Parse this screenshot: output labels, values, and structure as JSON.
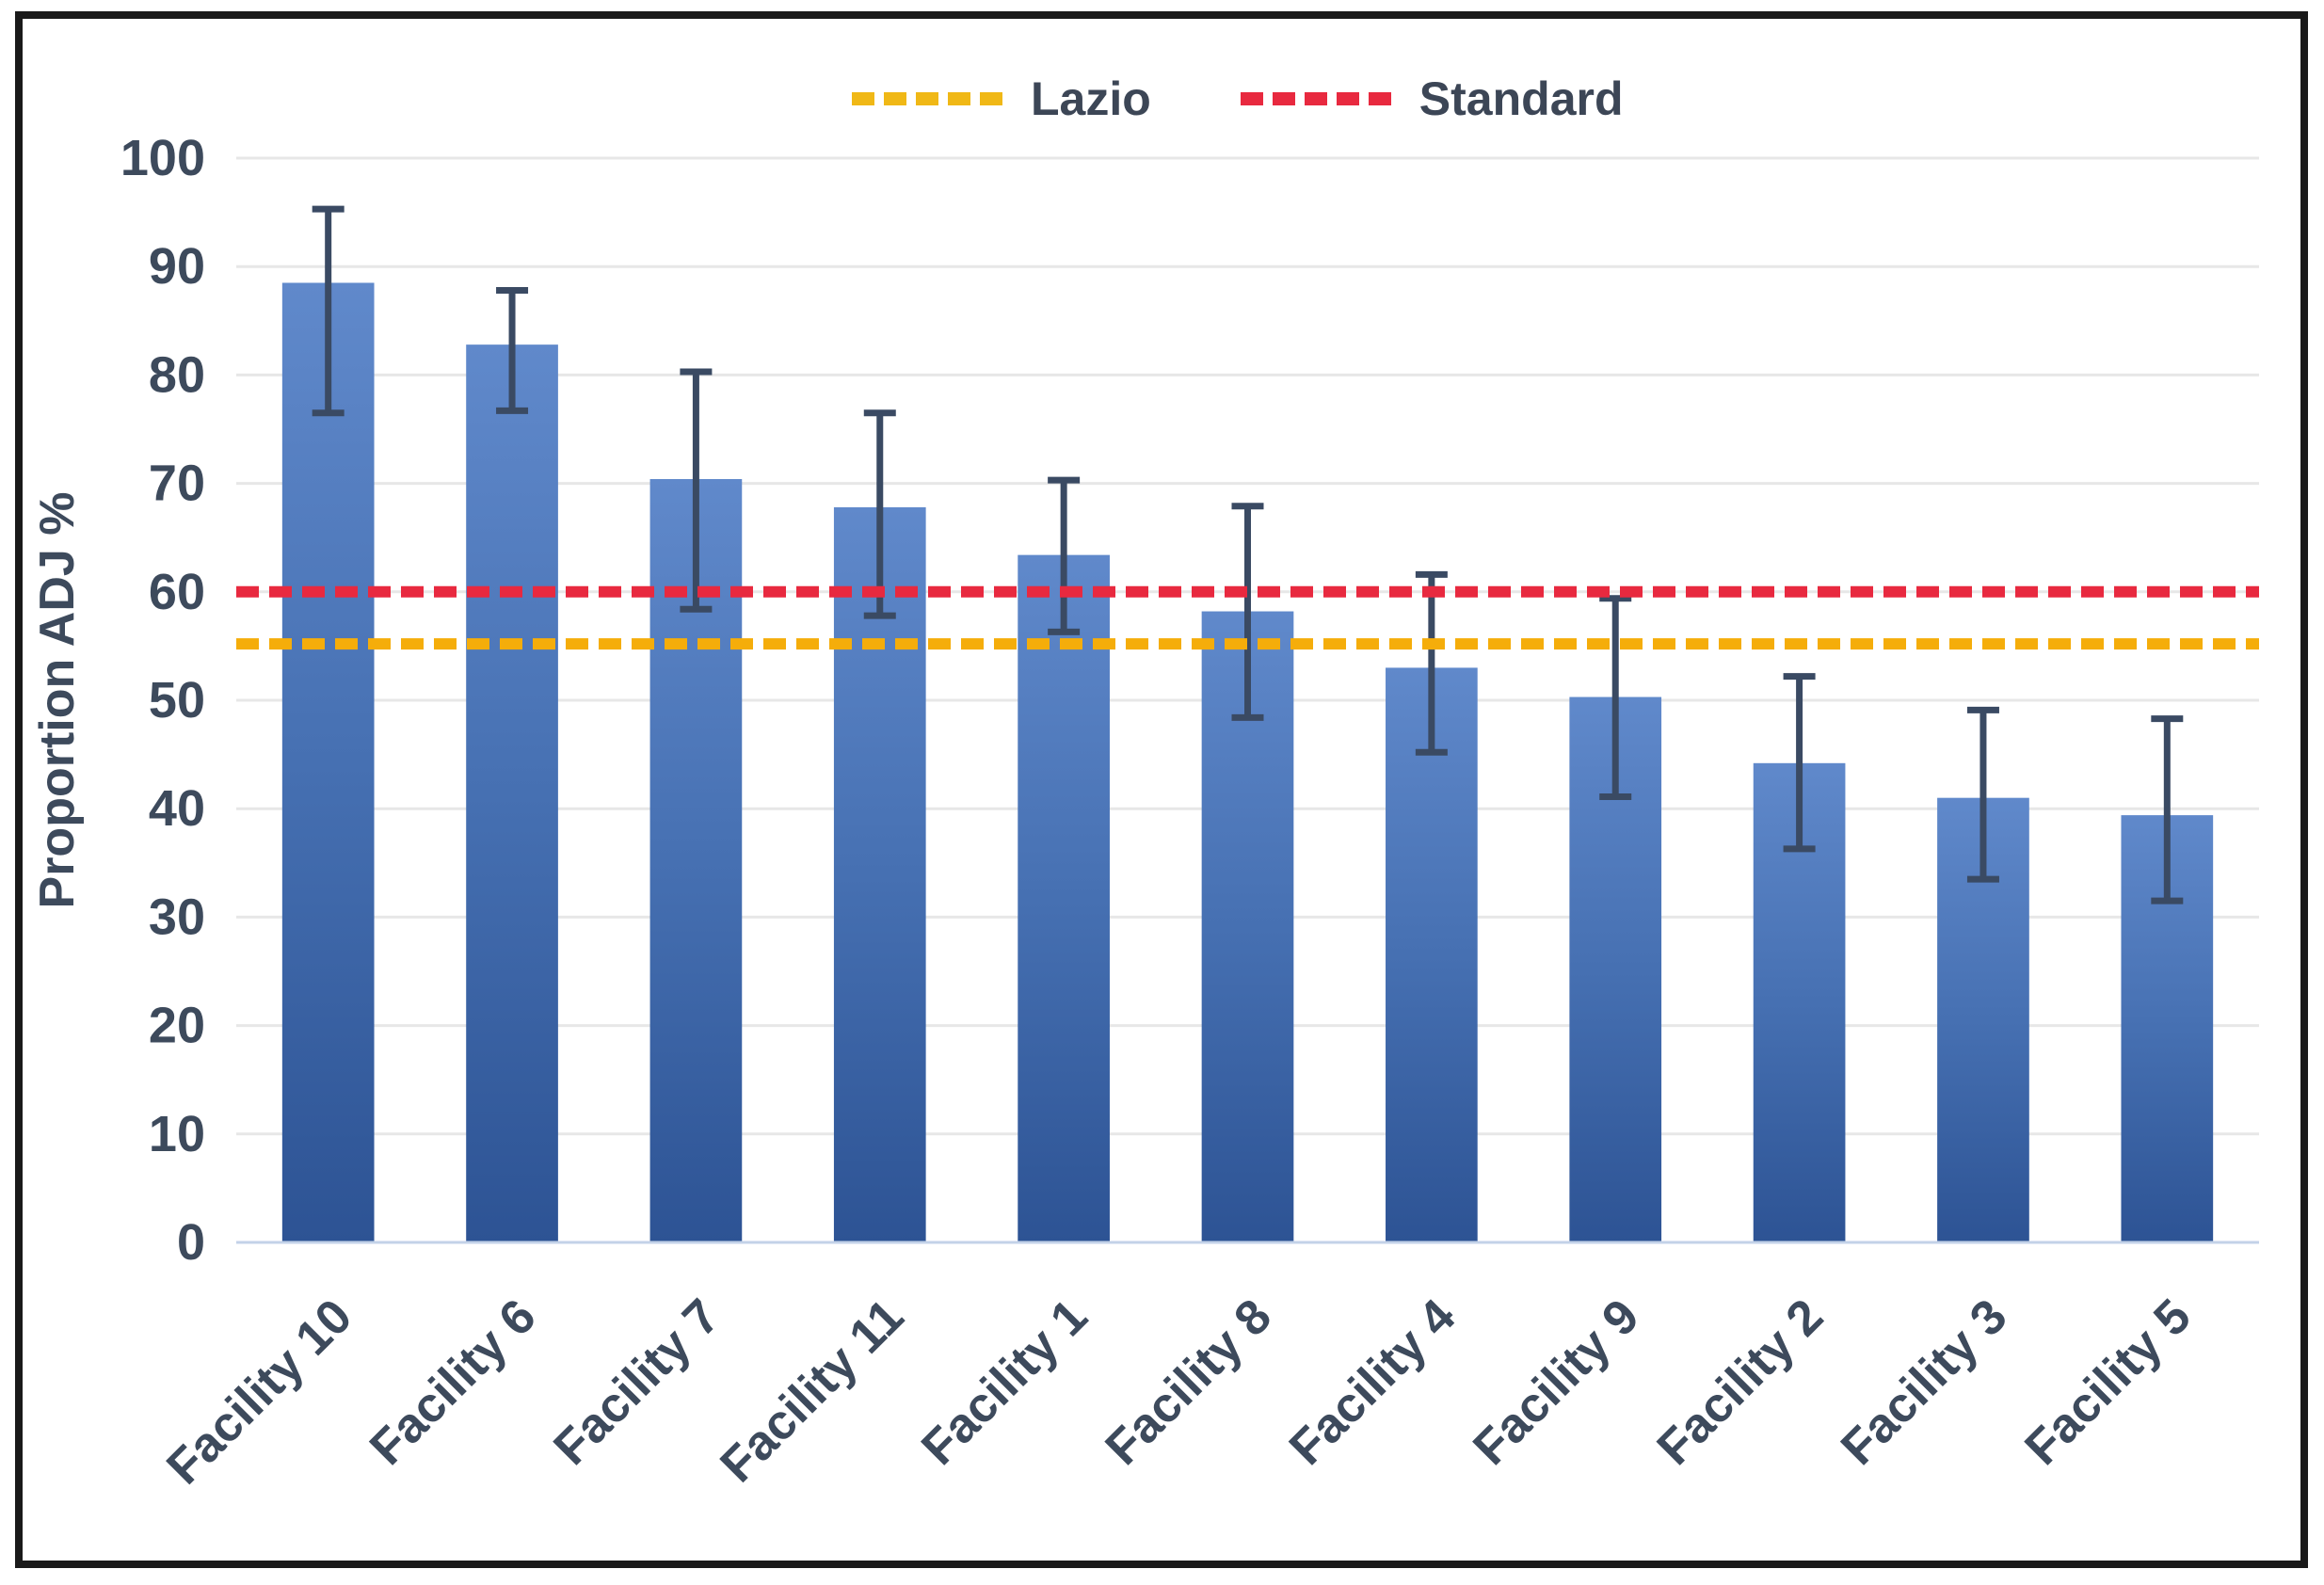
{
  "chart_data": {
    "type": "bar",
    "title": "",
    "xlabel": "",
    "ylabel": "Proportion ADJ %",
    "ylim": [
      0,
      100
    ],
    "ytick_step": 10,
    "yticks": [
      0,
      10,
      20,
      30,
      40,
      50,
      60,
      70,
      80,
      90,
      100
    ],
    "grid": true,
    "categories": [
      "Facility 10",
      "Facility 6",
      "Facility 7",
      "Facility 11",
      "Facility 1",
      "Facility 8",
      "Facility 4",
      "Facility 9",
      "Facility 2",
      "Facility 3",
      "Facility 5"
    ],
    "series": [
      {
        "name": "Proportion ADJ %",
        "values": [
          88.5,
          82.8,
          70.4,
          67.8,
          63.4,
          58.2,
          53.0,
          50.3,
          44.2,
          41.0,
          39.4
        ],
        "error_high": [
          95.3,
          87.8,
          80.3,
          76.5,
          70.3,
          67.9,
          61.6,
          59.4,
          52.2,
          49.1,
          48.3
        ],
        "error_low": [
          76.5,
          76.7,
          58.4,
          57.8,
          56.3,
          48.4,
          45.2,
          41.1,
          36.3,
          33.5,
          31.5
        ]
      }
    ],
    "reference_lines": [
      {
        "label": "Lazio",
        "value": 55.2,
        "color": "#f5ad0a",
        "style": "dashed"
      },
      {
        "label": "Standard",
        "value": 60.0,
        "color": "#e8293f",
        "style": "dashed"
      }
    ],
    "legend": {
      "position": "top",
      "entries": [
        {
          "label": "Lazio",
          "color": "#f0b816"
        },
        {
          "label": "Standard",
          "color": "#e8293f"
        }
      ]
    }
  },
  "style": {
    "bar_color_top": "#6089cb",
    "bar_color_mid": "#4670b2",
    "bar_color_bottom": "#2d5394",
    "error_bar_color": "#3a4a63",
    "gridline_color": "#e7e7e7",
    "axis_line_color": "#c3d2e8",
    "text_color": "#3d4a5c",
    "frame_color": "#1a1a1a"
  }
}
